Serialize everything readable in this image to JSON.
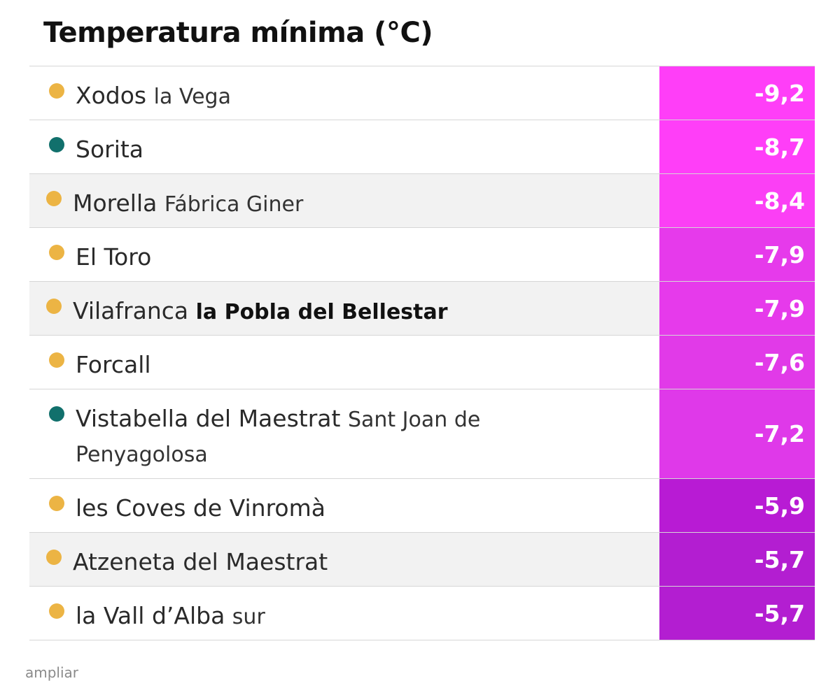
{
  "title": "Temperatura mínima (°C)",
  "rows": [
    {
      "name": "Xodos",
      "sub": "la Vega",
      "sub_bold": false,
      "value": "-9,2",
      "dot": "orange",
      "accent": true,
      "shade": false,
      "color": "#ff3ef8"
    },
    {
      "name": "Sorita",
      "sub": "",
      "sub_bold": false,
      "value": "-8,7",
      "dot": "teal",
      "accent": true,
      "shade": false,
      "color": "#ff3ef8"
    },
    {
      "name": "Morella",
      "sub": "Fábrica Giner",
      "sub_bold": false,
      "value": "-8,4",
      "dot": "orange",
      "accent": false,
      "shade": true,
      "color": "#fb3ff5"
    },
    {
      "name": "El Toro",
      "sub": "",
      "sub_bold": false,
      "value": "-7,9",
      "dot": "orange",
      "accent": true,
      "shade": false,
      "color": "#e63aeb"
    },
    {
      "name": "Vilafranca",
      "sub": "la Pobla del Bellestar",
      "sub_bold": true,
      "value": "-7,9",
      "dot": "orange",
      "accent": false,
      "shade": true,
      "color": "#e63aeb"
    },
    {
      "name": "Forcall",
      "sub": "",
      "sub_bold": false,
      "value": "-7,6",
      "dot": "orange",
      "accent": true,
      "shade": false,
      "color": "#e13ae8"
    },
    {
      "name": "Vistabella del Maestrat",
      "sub": "Sant Joan de Penyagolosa",
      "sub_bold": false,
      "value": "-7,2",
      "dot": "teal",
      "accent": true,
      "shade": false,
      "color": "#df39e9",
      "tall": true
    },
    {
      "name": "les Coves de Vinromà",
      "sub": "",
      "sub_bold": false,
      "value": "-5,9",
      "dot": "orange",
      "accent": true,
      "shade": false,
      "color": "#b81bd4"
    },
    {
      "name": "Atzeneta del Maestrat",
      "sub": "",
      "sub_bold": false,
      "value": "-5,7",
      "dot": "orange",
      "accent": false,
      "shade": true,
      "color": "#b31ed1"
    },
    {
      "name": "la Vall d’Alba",
      "sub": "sur",
      "sub_bold": false,
      "value": "-5,7",
      "dot": "orange",
      "accent": true,
      "shade": false,
      "color": "#b31ed1"
    }
  ],
  "footer": {
    "expand_label": "ampliar"
  },
  "colors": {
    "accent_bar": "#2fbf2f",
    "dot_orange": "#ecb444",
    "dot_teal": "#11706c",
    "row_shade": "#f2f2f2"
  }
}
